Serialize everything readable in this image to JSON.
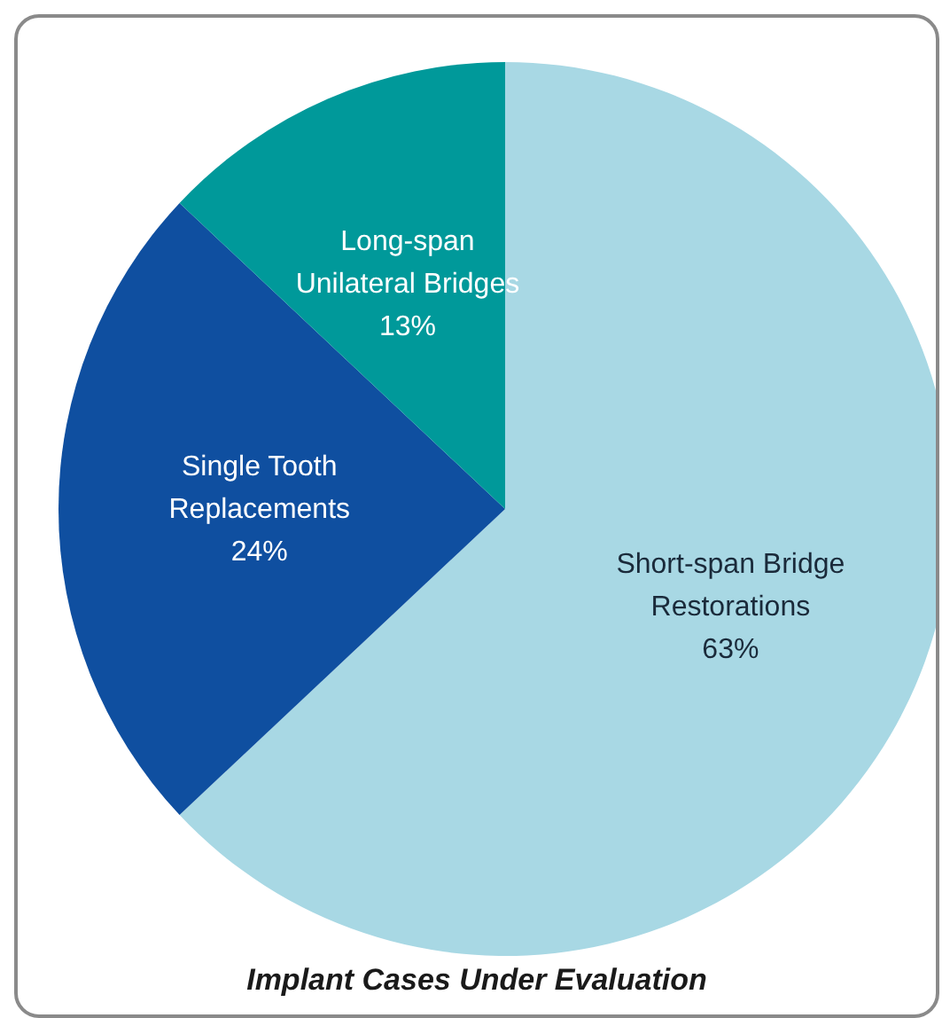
{
  "chart_data": {
    "type": "pie",
    "title": "Implant Cases Under Evaluation",
    "categories": [
      "Short-span Bridge Restorations",
      "Single Tooth Replacements",
      "Long-span Unilateral Bridges"
    ],
    "values": [
      63,
      24,
      13
    ],
    "value_labels": [
      "63%",
      "24%",
      "13%"
    ],
    "colors": [
      "#a8d8e4",
      "#0f4fa0",
      "#00999a"
    ]
  }
}
